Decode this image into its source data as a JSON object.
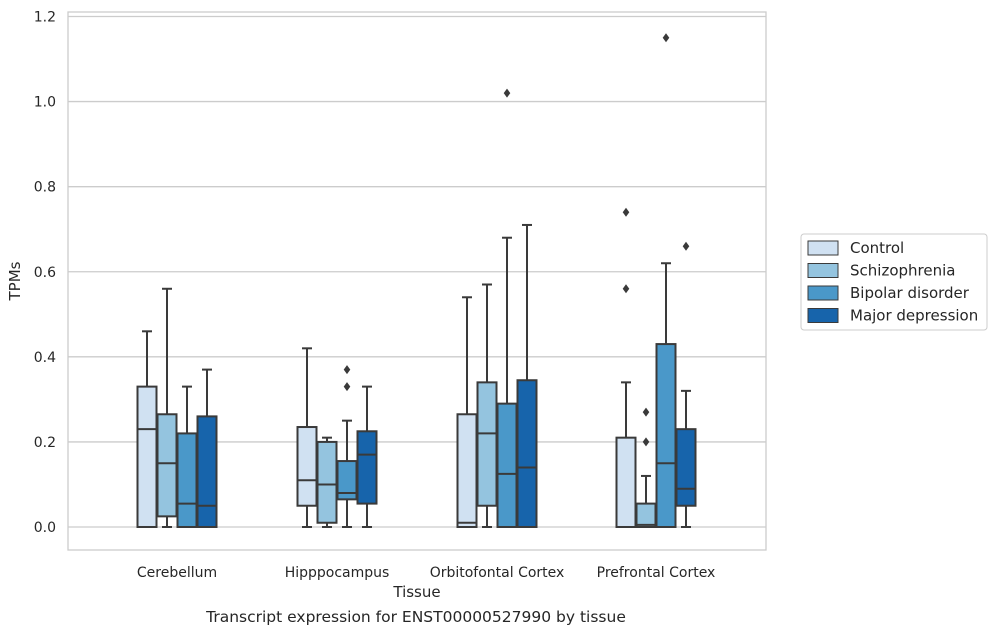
{
  "caption": "Transcript expression for ENST00000527990 by tissue",
  "chart_data": {
    "type": "box",
    "title": "",
    "xlabel": "Tissue",
    "ylabel": "TPMs",
    "ylim": [
      -0.055,
      1.21
    ],
    "yticks": [
      0.0,
      0.2,
      0.4,
      0.6,
      0.8,
      1.0,
      1.2
    ],
    "ytick_labels": [
      "0.0",
      "0.2",
      "0.4",
      "0.6",
      "0.8",
      "1.0",
      "1.2"
    ],
    "grid": "horizontal",
    "legend_position": "right",
    "categories": [
      "Cerebellum",
      "Hipppocampus",
      "Orbitofontal Cortex",
      "Prefrontal Cortex"
    ],
    "series": [
      {
        "name": "Control",
        "color": "#d0e1f2",
        "boxes": [
          {
            "whislo": 0.0,
            "q1": 0.0,
            "med": 0.23,
            "q3": 0.33,
            "whishi": 0.46,
            "fliers": []
          },
          {
            "whislo": 0.0,
            "q1": 0.05,
            "med": 0.11,
            "q3": 0.235,
            "whishi": 0.42,
            "fliers": []
          },
          {
            "whislo": 0.0,
            "q1": 0.0,
            "med": 0.01,
            "q3": 0.265,
            "whishi": 0.54,
            "fliers": []
          },
          {
            "whislo": 0.0,
            "q1": 0.0,
            "med": 0.0,
            "q3": 0.21,
            "whishi": 0.34,
            "fliers": [
              0.56,
              0.74
            ]
          }
        ]
      },
      {
        "name": "Schizophrenia",
        "color": "#94c4df",
        "boxes": [
          {
            "whislo": 0.0,
            "q1": 0.025,
            "med": 0.15,
            "q3": 0.265,
            "whishi": 0.56,
            "fliers": []
          },
          {
            "whislo": 0.0,
            "q1": 0.01,
            "med": 0.1,
            "q3": 0.2,
            "whishi": 0.21,
            "fliers": []
          },
          {
            "whislo": 0.0,
            "q1": 0.05,
            "med": 0.22,
            "q3": 0.34,
            "whishi": 0.57,
            "fliers": []
          },
          {
            "whislo": 0.0,
            "q1": 0.0,
            "med": 0.005,
            "q3": 0.055,
            "whishi": 0.12,
            "fliers": [
              0.2,
              0.27
            ]
          }
        ]
      },
      {
        "name": "Bipolar disorder",
        "color": "#4a98c9",
        "boxes": [
          {
            "whislo": 0.0,
            "q1": 0.0,
            "med": 0.055,
            "q3": 0.22,
            "whishi": 0.33,
            "fliers": []
          },
          {
            "whislo": 0.0,
            "q1": 0.065,
            "med": 0.08,
            "q3": 0.155,
            "whishi": 0.25,
            "fliers": [
              0.33,
              0.37
            ]
          },
          {
            "whislo": 0.0,
            "q1": 0.0,
            "med": 0.125,
            "q3": 0.29,
            "whishi": 0.68,
            "fliers": [
              1.02
            ]
          },
          {
            "whislo": 0.0,
            "q1": 0.0,
            "med": 0.15,
            "q3": 0.43,
            "whishi": 0.62,
            "fliers": [
              1.15
            ]
          }
        ]
      },
      {
        "name": "Major depression",
        "color": "#1764ab",
        "boxes": [
          {
            "whislo": 0.0,
            "q1": 0.0,
            "med": 0.05,
            "q3": 0.26,
            "whishi": 0.37,
            "fliers": []
          },
          {
            "whislo": 0.0,
            "q1": 0.055,
            "med": 0.17,
            "q3": 0.225,
            "whishi": 0.33,
            "fliers": []
          },
          {
            "whislo": 0.0,
            "q1": 0.0,
            "med": 0.14,
            "q3": 0.345,
            "whishi": 0.71,
            "fliers": []
          },
          {
            "whislo": 0.0,
            "q1": 0.05,
            "med": 0.09,
            "q3": 0.23,
            "whishi": 0.32,
            "fliers": [
              0.66
            ]
          }
        ]
      }
    ],
    "style": {
      "grid_color": "#cccccc",
      "spine_color": "#cccccc",
      "line_color": "#3a3a3a",
      "background": "#ffffff"
    }
  }
}
